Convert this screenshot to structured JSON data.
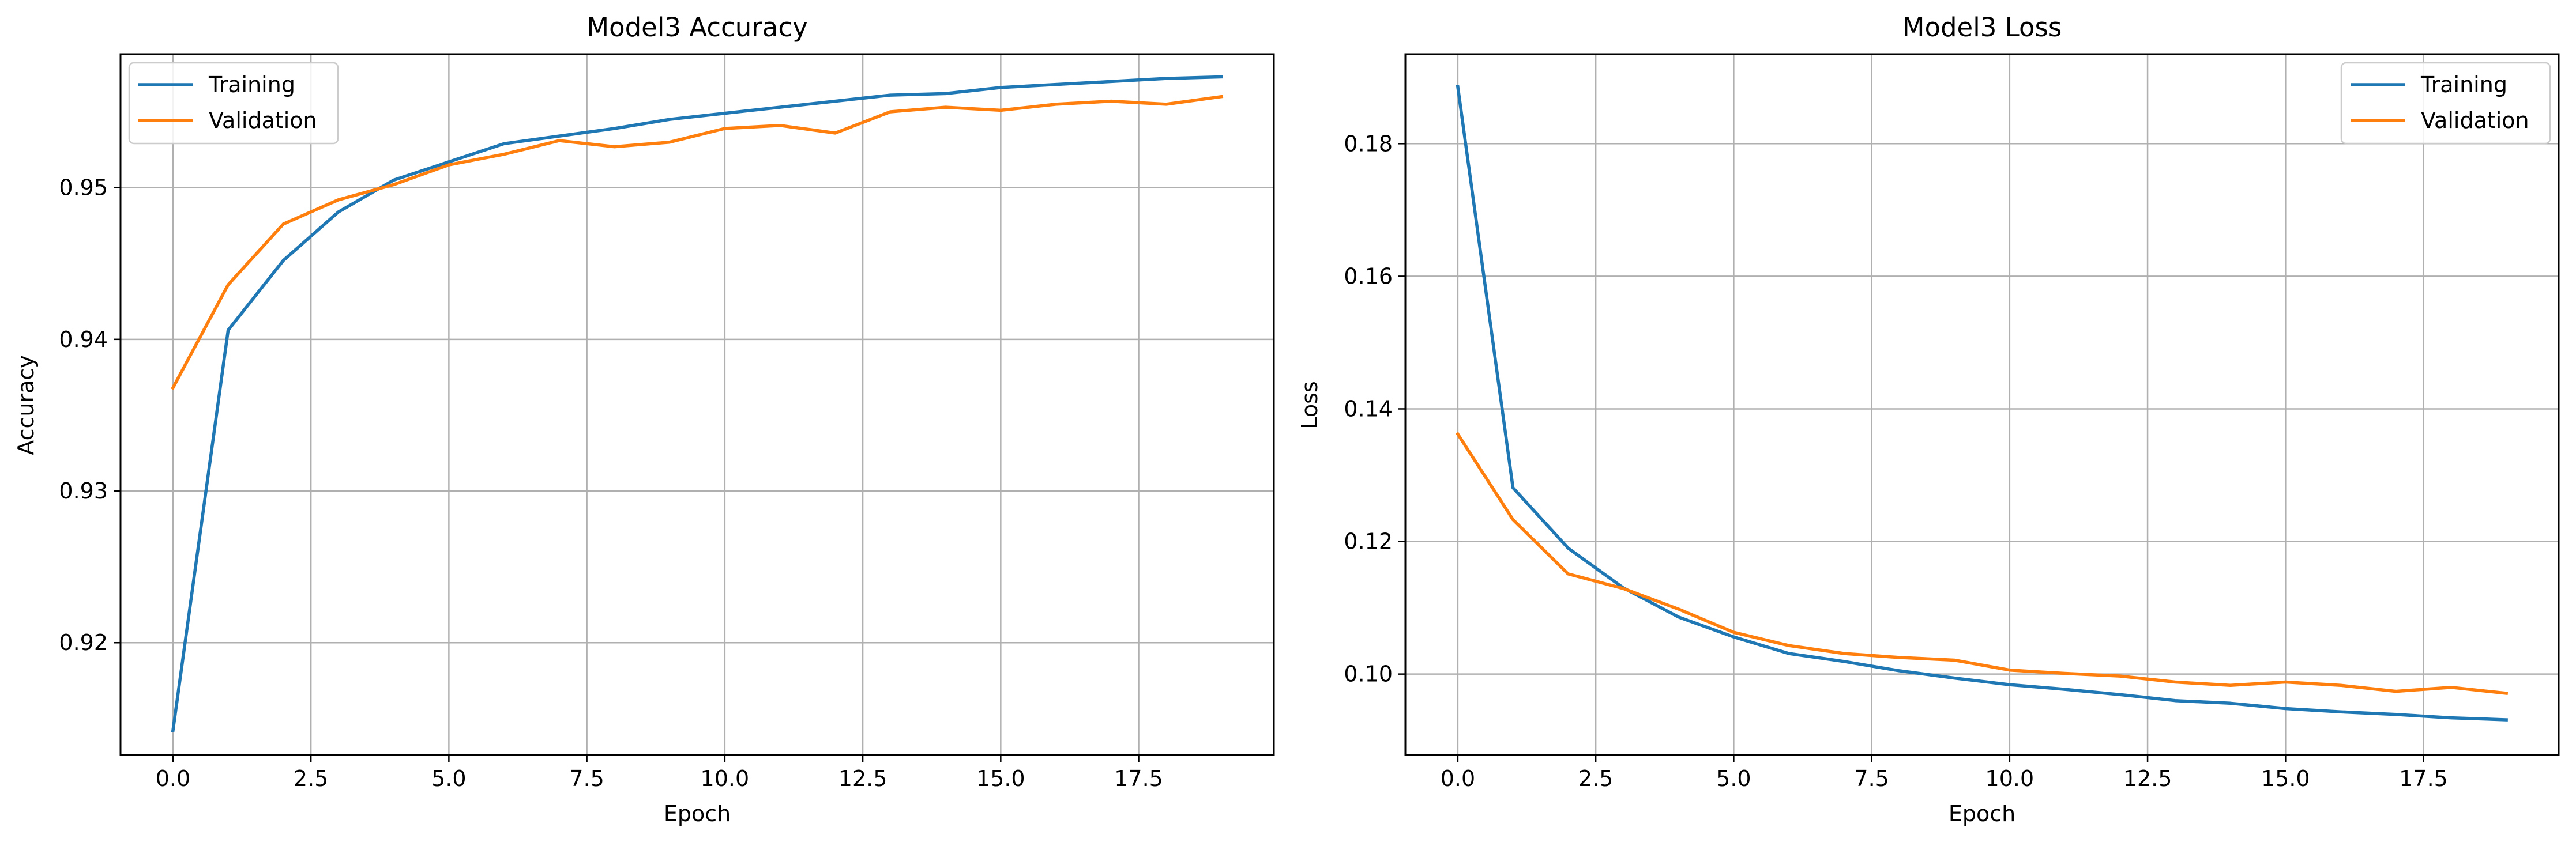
{
  "chart_data": [
    {
      "type": "line",
      "title": "Model3 Accuracy",
      "xlabel": "Epoch",
      "ylabel": "Accuracy",
      "xlim": [
        -0.95,
        19.95
      ],
      "ylim": [
        0.9126,
        0.9588
      ],
      "xticks": [
        0,
        2.5,
        5,
        7.5,
        10,
        12.5,
        15,
        17.5
      ],
      "xtick_labels": [
        "0.0",
        "2.5",
        "5.0",
        "7.5",
        "10.0",
        "12.5",
        "15.0",
        "17.5"
      ],
      "yticks": [
        0.92,
        0.93,
        0.94,
        0.95
      ],
      "ytick_labels": [
        "0.92",
        "0.93",
        "0.94",
        "0.95"
      ],
      "grid": true,
      "legend_position": "upper-left",
      "x": [
        0,
        1,
        2,
        3,
        4,
        5,
        6,
        7,
        8,
        9,
        10,
        11,
        12,
        13,
        14,
        15,
        16,
        17,
        18,
        19
      ],
      "series": [
        {
          "name": "Training",
          "color": "#1f77b4",
          "values": [
            0.9142,
            0.9406,
            0.9452,
            0.9484,
            0.9505,
            0.9517,
            0.9529,
            0.9534,
            0.9539,
            0.9545,
            0.9549,
            0.9553,
            0.9557,
            0.9561,
            0.9562,
            0.9566,
            0.9568,
            0.957,
            0.9572,
            0.9573
          ]
        },
        {
          "name": "Validation",
          "color": "#ff7f0e",
          "values": [
            0.9368,
            0.9436,
            0.9476,
            0.9492,
            0.9502,
            0.9515,
            0.9522,
            0.9531,
            0.9527,
            0.953,
            0.9539,
            0.9541,
            0.9536,
            0.955,
            0.9553,
            0.9551,
            0.9555,
            0.9557,
            0.9555,
            0.956
          ]
        }
      ]
    },
    {
      "type": "line",
      "title": "Model3 Loss",
      "xlabel": "Epoch",
      "ylabel": "Loss",
      "xlim": [
        -0.95,
        19.95
      ],
      "ylim": [
        0.0878,
        0.1935
      ],
      "xticks": [
        0,
        2.5,
        5,
        7.5,
        10,
        12.5,
        15,
        17.5
      ],
      "xtick_labels": [
        "0.0",
        "2.5",
        "5.0",
        "7.5",
        "10.0",
        "12.5",
        "15.0",
        "17.5"
      ],
      "yticks": [
        0.1,
        0.12,
        0.14,
        0.16,
        0.18
      ],
      "ytick_labels": [
        "0.10",
        "0.12",
        "0.14",
        "0.16",
        "0.18"
      ],
      "grid": true,
      "legend_position": "upper-right",
      "x": [
        0,
        1,
        2,
        3,
        4,
        5,
        6,
        7,
        8,
        9,
        10,
        11,
        12,
        13,
        14,
        15,
        16,
        17,
        18,
        19
      ],
      "series": [
        {
          "name": "Training",
          "color": "#1f77b4",
          "values": [
            0.1886,
            0.1281,
            0.119,
            0.113,
            0.1086,
            0.1056,
            0.1031,
            0.1019,
            0.1005,
            0.0994,
            0.0984,
            0.0977,
            0.0969,
            0.096,
            0.0956,
            0.0948,
            0.0943,
            0.0939,
            0.0934,
            0.0931
          ]
        },
        {
          "name": "Validation",
          "color": "#ff7f0e",
          "values": [
            0.1362,
            0.1233,
            0.1151,
            0.1129,
            0.1098,
            0.1063,
            0.1043,
            0.1031,
            0.1025,
            0.1021,
            0.1006,
            0.1001,
            0.0997,
            0.0988,
            0.0983,
            0.0988,
            0.0983,
            0.0974,
            0.098,
            0.0971
          ]
        }
      ]
    }
  ]
}
